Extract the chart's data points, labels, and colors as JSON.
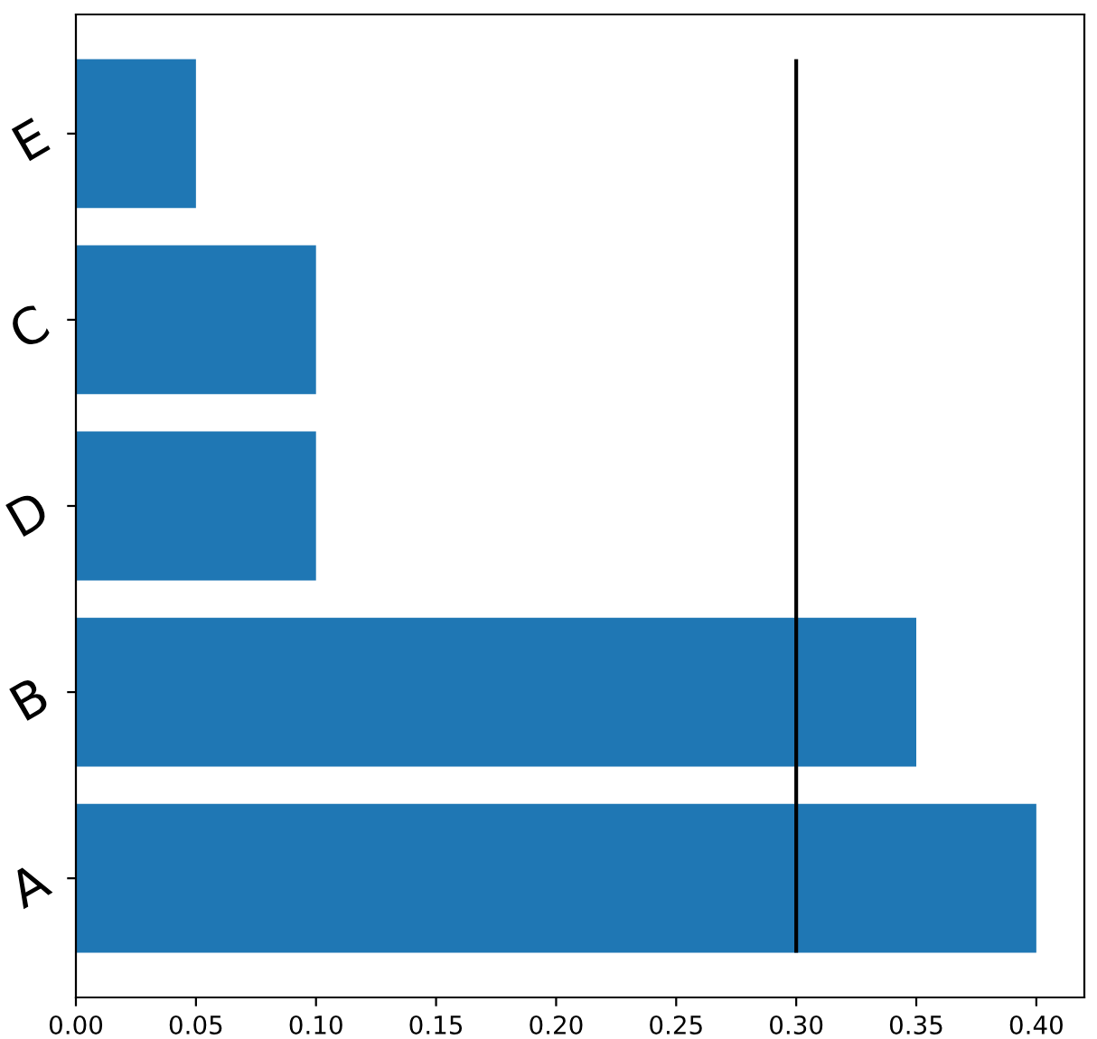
{
  "chart_data": {
    "type": "bar",
    "orientation": "horizontal",
    "categories": [
      "E",
      "C",
      "D",
      "B",
      "A"
    ],
    "values": [
      0.05,
      0.1,
      0.1,
      0.35,
      0.4
    ],
    "color": "#1f77b4",
    "xlim": [
      0,
      0.42
    ],
    "xticks": [
      {
        "value": 0,
        "label": "0.00"
      },
      {
        "value": 0.05,
        "label": "0.05"
      },
      {
        "value": 0.1,
        "label": "0.10"
      },
      {
        "value": 0.15,
        "label": "0.15"
      },
      {
        "value": 0.2,
        "label": "0.20"
      },
      {
        "value": 0.25,
        "label": "0.25"
      },
      {
        "value": 0.3,
        "label": "0.30"
      },
      {
        "value": 0.35,
        "label": "0.35"
      },
      {
        "value": 0.4,
        "label": "0.40"
      }
    ],
    "ref_lines": [
      {
        "axis": "x",
        "value": 0.3,
        "color": "#000000"
      }
    ],
    "grid": false
  }
}
